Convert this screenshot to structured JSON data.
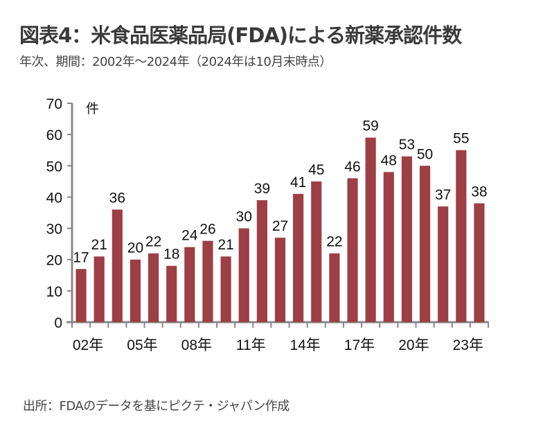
{
  "title": "図表4：米食品医薬品局(FDA)による新薬承認件数",
  "subtitle": "年次、期間：2002年～2024年（2024年は10月末時点）",
  "source": "出所：FDAのデータを基にピクテ・ジャパン作成",
  "colors": {
    "bar": "#9e3e45",
    "axis": "#888888"
  },
  "chart_data": {
    "type": "bar",
    "title": "図表4：米食品医薬品局(FDA)による新薬承認件数",
    "subtitle": "年次、期間：2002年～2024年（2024年は10月末時点）",
    "xlabel": "",
    "ylabel": "件",
    "ylim": [
      0,
      70
    ],
    "yticks": [
      0,
      10,
      20,
      30,
      40,
      50,
      60,
      70
    ],
    "grid": false,
    "legend": "none",
    "categories": [
      "2002",
      "2003",
      "2004",
      "2005",
      "2006",
      "2007",
      "2008",
      "2009",
      "2010",
      "2011",
      "2012",
      "2013",
      "2014",
      "2015",
      "2016",
      "2017",
      "2018",
      "2019",
      "2020",
      "2021",
      "2022",
      "2023",
      "2024"
    ],
    "x_tick_labels": [
      {
        "index": 0,
        "label": "02年"
      },
      {
        "index": 3,
        "label": "05年"
      },
      {
        "index": 6,
        "label": "08年"
      },
      {
        "index": 9,
        "label": "11年"
      },
      {
        "index": 12,
        "label": "14年"
      },
      {
        "index": 15,
        "label": "17年"
      },
      {
        "index": 18,
        "label": "20年"
      },
      {
        "index": 21,
        "label": "23年"
      }
    ],
    "values": [
      17,
      21,
      36,
      20,
      22,
      18,
      24,
      26,
      21,
      30,
      39,
      27,
      41,
      45,
      22,
      46,
      59,
      48,
      53,
      50,
      37,
      55,
      38
    ],
    "data_labels": true
  }
}
